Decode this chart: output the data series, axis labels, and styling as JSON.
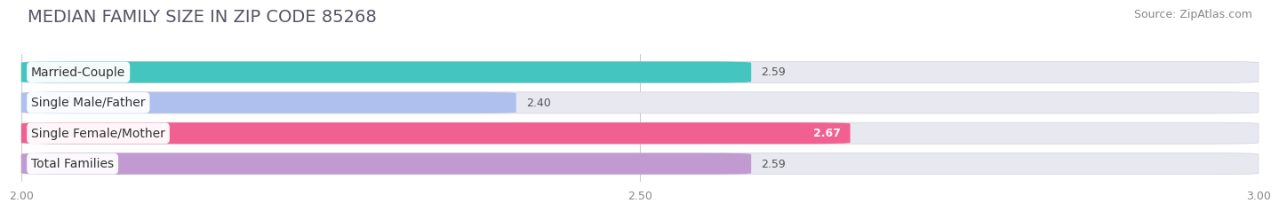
{
  "title": "MEDIAN FAMILY SIZE IN ZIP CODE 85268",
  "source": "Source: ZipAtlas.com",
  "categories": [
    "Married-Couple",
    "Single Male/Father",
    "Single Female/Mother",
    "Total Families"
  ],
  "values": [
    2.59,
    2.4,
    2.67,
    2.59
  ],
  "bar_colors": [
    "#45c5c0",
    "#b0c0ee",
    "#f06090",
    "#c09ad0"
  ],
  "value_label_inside": [
    false,
    false,
    true,
    false
  ],
  "xlim": [
    2.0,
    3.0
  ],
  "xticks": [
    2.0,
    2.5,
    3.0
  ],
  "xtick_labels": [
    "2.00",
    "2.50",
    "3.00"
  ],
  "bg_color": "#ffffff",
  "bar_bg_color": "#e8e8f0",
  "title_fontsize": 14,
  "source_fontsize": 9,
  "label_fontsize": 10,
  "value_fontsize": 9,
  "bar_height": 0.7,
  "figsize": [
    14.06,
    2.33
  ]
}
